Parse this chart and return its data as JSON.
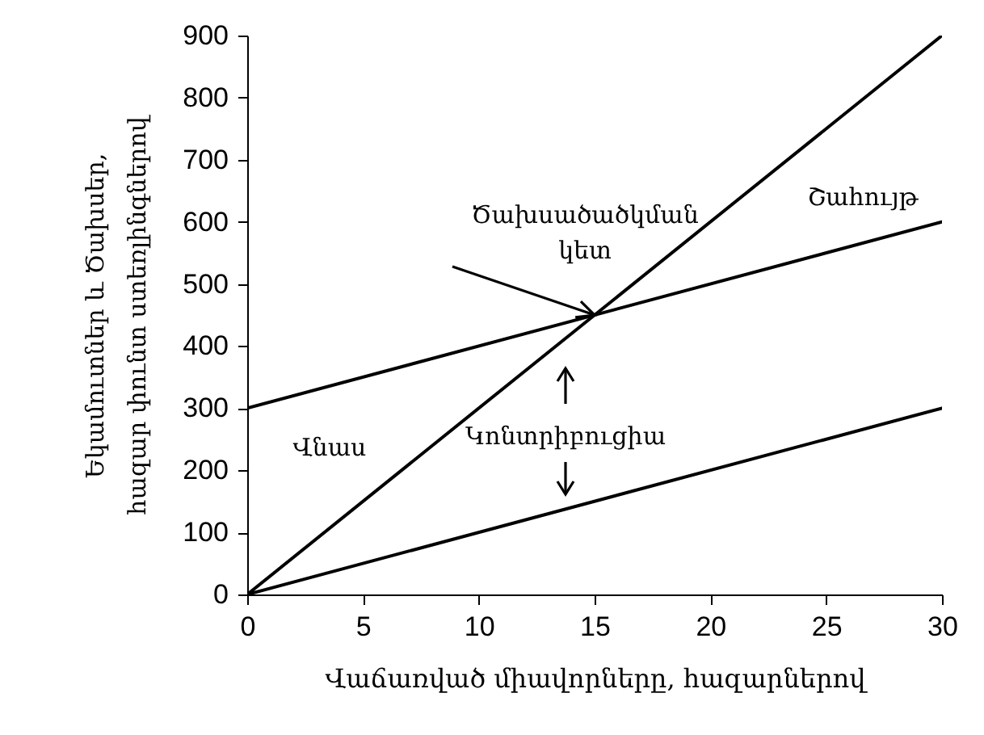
{
  "chart_data": {
    "type": "line",
    "xlabel": "Վաճառված միավորները, հազարներով",
    "ylabel": "Եկամուտներ և Ծախսեր, հազար փունտ ստեռլինգներով",
    "x": [
      0,
      30
    ],
    "series": [
      {
        "color": "#000000",
        "values": [
          0,
          900
        ]
      },
      {
        "color": "#000000",
        "values": [
          300,
          600
        ]
      },
      {
        "color": "#000000",
        "values": [
          0,
          300
        ]
      }
    ],
    "xlim": [
      0,
      30
    ],
    "xticks": [
      0,
      5,
      10,
      15,
      20,
      25,
      30
    ],
    "ylim": [
      0,
      900
    ],
    "yticks": [
      0,
      100,
      200,
      300,
      400,
      500,
      600,
      700,
      800,
      900
    ],
    "grid": false,
    "marker": "none",
    "line_style": "solid",
    "annotations": [
      {
        "text": "Ծախսածածկման կետ",
        "x": 15,
        "y": 450
      },
      "Շահույթ",
      "Վնաս",
      "Կոնտրիբուցիա"
    ]
  }
}
